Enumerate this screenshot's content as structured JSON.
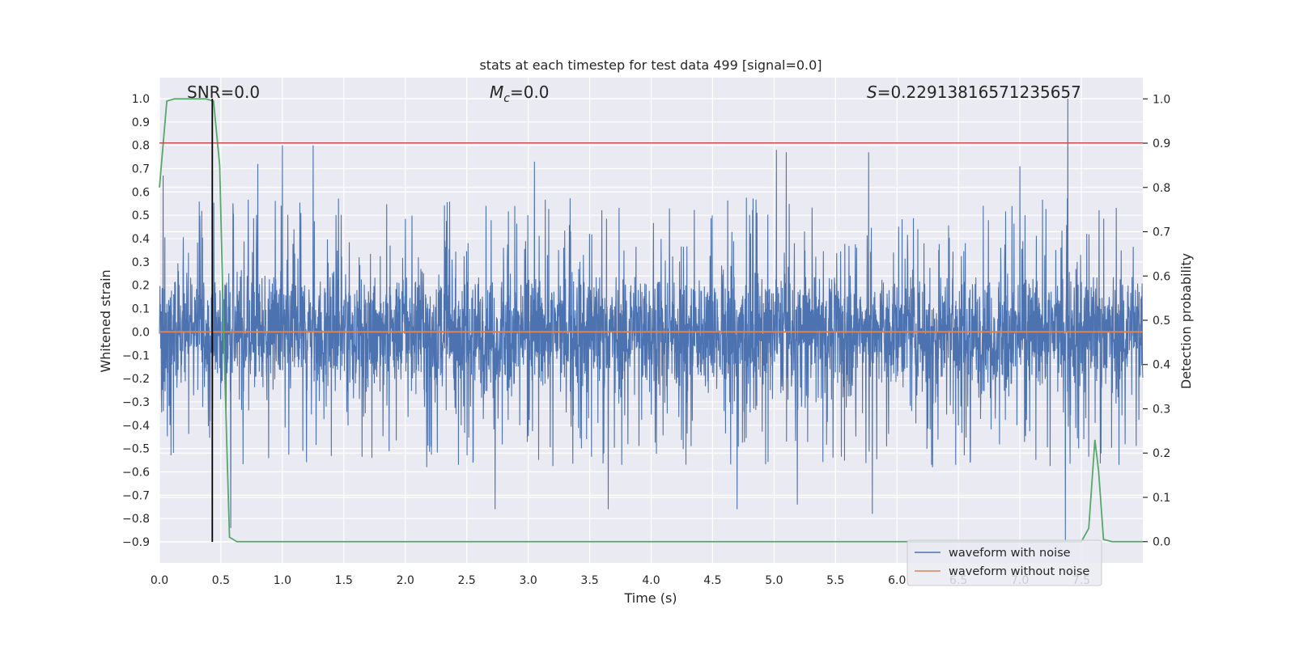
{
  "chart_data": {
    "type": "line",
    "title": "stats at each timestep for test data 499 [signal=0.0]",
    "xlabel": "Time (s)",
    "ylabel": "Whitened strain",
    "y2label": "Detection probability",
    "xlim": [
      0.0,
      8.0
    ],
    "ylim": [
      -0.99,
      1.09
    ],
    "y2lim": [
      -0.048,
      1.048
    ],
    "x_ticks": [
      0.0,
      0.5,
      1.0,
      1.5,
      2.0,
      2.5,
      3.0,
      3.5,
      4.0,
      4.5,
      5.0,
      5.5,
      6.0,
      6.5,
      7.0,
      7.5
    ],
    "x_tick_labels": [
      "0.0",
      "0.5",
      "1.0",
      "1.5",
      "2.0",
      "2.5",
      "3.0",
      "3.5",
      "4.0",
      "4.5",
      "5.0",
      "5.5",
      "6.0",
      "6.5",
      "7.0",
      "7.5"
    ],
    "y_ticks": [
      1.0,
      0.9,
      0.8,
      0.7,
      0.6,
      0.5,
      0.4,
      0.3,
      0.2,
      0.1,
      0.0,
      -0.1,
      -0.2,
      -0.3,
      -0.4,
      -0.5,
      -0.6,
      -0.7,
      -0.8,
      -0.9
    ],
    "y_tick_labels": [
      "1.0",
      "0.9",
      "0.8",
      "0.7",
      "0.6",
      "0.5",
      "0.4",
      "0.3",
      "0.2",
      "0.1",
      "0.0",
      "−0.1",
      "−0.2",
      "−0.3",
      "−0.4",
      "−0.5",
      "−0.6",
      "−0.7",
      "−0.8",
      "−0.9"
    ],
    "y2_ticks": [
      1.0,
      0.9,
      0.8,
      0.7,
      0.6,
      0.5,
      0.4,
      0.3,
      0.2,
      0.1,
      0.0
    ],
    "y2_tick_labels": [
      "1.0",
      "0.9",
      "0.8",
      "0.7",
      "0.6",
      "0.5",
      "0.4",
      "0.3",
      "0.2",
      "0.1",
      "0.0"
    ],
    "grid": true,
    "legend_placement": "lower-right",
    "annotations": {
      "snr_text": "SNR=0.0",
      "mc_symbol": "M",
      "mc_sub": "c",
      "mc_value": "=0.0",
      "s_symbol": "S",
      "s_value": "=0.22913816571235657"
    },
    "series": [
      {
        "name": "waveform with noise",
        "color": "#4c72b0",
        "kind": "noise",
        "x_range": [
          0.0,
          8.0
        ],
        "core_band": [
          -0.3,
          0.3
        ],
        "notable_peaks": [
          {
            "x": 0.03,
            "y": 0.67
          },
          {
            "x": 0.43,
            "y": 0.71
          },
          {
            "x": 0.8,
            "y": 0.72
          },
          {
            "x": 1.0,
            "y": 0.8
          },
          {
            "x": 1.25,
            "y": 0.8
          },
          {
            "x": 3.05,
            "y": 0.73
          },
          {
            "x": 5.02,
            "y": 0.78
          },
          {
            "x": 5.1,
            "y": 0.77
          },
          {
            "x": 5.77,
            "y": 0.77
          },
          {
            "x": 7.0,
            "y": 0.71
          },
          {
            "x": 7.39,
            "y": 1.0
          }
        ],
        "notable_troughs": [
          {
            "x": 0.58,
            "y": -0.84
          },
          {
            "x": 2.73,
            "y": -0.76
          },
          {
            "x": 3.65,
            "y": -0.76
          },
          {
            "x": 4.7,
            "y": -0.76
          },
          {
            "x": 5.19,
            "y": -0.74
          },
          {
            "x": 5.8,
            "y": -0.78
          },
          {
            "x": 7.37,
            "y": -0.9
          }
        ]
      },
      {
        "name": "waveform without noise",
        "color": "#dd8452",
        "x": [
          0.0,
          8.0
        ],
        "y": [
          0.0,
          0.0
        ]
      },
      {
        "name": "",
        "color": "#55a868",
        "axis": "y2",
        "x": [
          0.0,
          0.06,
          0.12,
          0.2,
          0.3,
          0.38,
          0.44,
          0.49,
          0.52,
          0.55,
          0.57,
          0.63,
          0.7,
          7.5,
          7.56,
          7.61,
          7.64,
          7.68,
          7.75,
          8.0
        ],
        "y": [
          0.8,
          0.995,
          1.0,
          1.0,
          1.0,
          1.0,
          0.995,
          0.85,
          0.5,
          0.2,
          0.01,
          0.0,
          0.0,
          0.0,
          0.03,
          0.23,
          0.16,
          0.005,
          0.0,
          0.0
        ]
      }
    ],
    "reference_lines": [
      {
        "orientation": "horizontal",
        "axis": "y",
        "value": 0.81,
        "color": "#c44e52"
      },
      {
        "orientation": "vertical",
        "value": 0.43,
        "y_from": -0.9,
        "y_to": 1.0,
        "color": "#000000"
      }
    ]
  }
}
